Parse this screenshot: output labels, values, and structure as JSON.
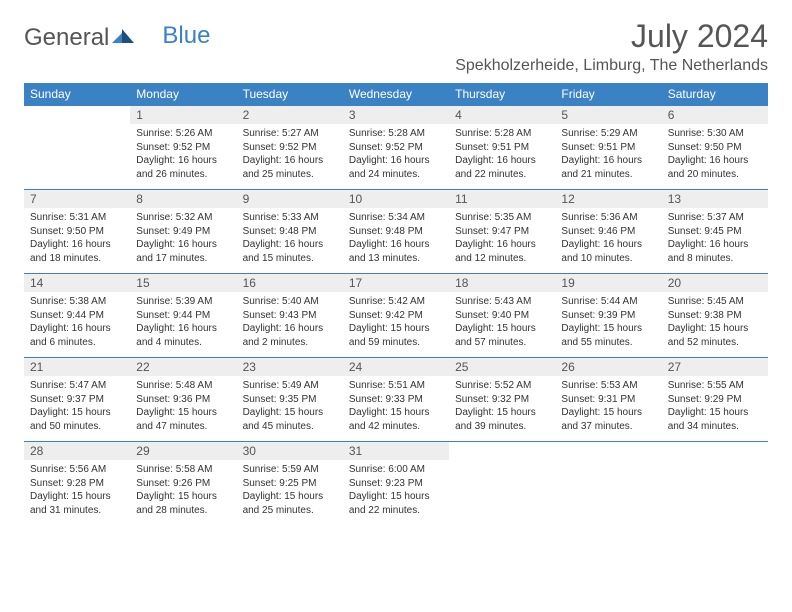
{
  "logo": {
    "text1": "General",
    "text2": "Blue"
  },
  "title": "July 2024",
  "location": "Spekholzerheide, Limburg, The Netherlands",
  "colors": {
    "header_bg": "#3b82c4",
    "daynum_bg": "#eeeeee",
    "text": "#333333"
  },
  "days_of_week": [
    "Sunday",
    "Monday",
    "Tuesday",
    "Wednesday",
    "Thursday",
    "Friday",
    "Saturday"
  ],
  "weeks": [
    [
      {
        "n": "",
        "sr": "",
        "ss": "",
        "dl": ""
      },
      {
        "n": "1",
        "sr": "Sunrise: 5:26 AM",
        "ss": "Sunset: 9:52 PM",
        "dl": "Daylight: 16 hours and 26 minutes."
      },
      {
        "n": "2",
        "sr": "Sunrise: 5:27 AM",
        "ss": "Sunset: 9:52 PM",
        "dl": "Daylight: 16 hours and 25 minutes."
      },
      {
        "n": "3",
        "sr": "Sunrise: 5:28 AM",
        "ss": "Sunset: 9:52 PM",
        "dl": "Daylight: 16 hours and 24 minutes."
      },
      {
        "n": "4",
        "sr": "Sunrise: 5:28 AM",
        "ss": "Sunset: 9:51 PM",
        "dl": "Daylight: 16 hours and 22 minutes."
      },
      {
        "n": "5",
        "sr": "Sunrise: 5:29 AM",
        "ss": "Sunset: 9:51 PM",
        "dl": "Daylight: 16 hours and 21 minutes."
      },
      {
        "n": "6",
        "sr": "Sunrise: 5:30 AM",
        "ss": "Sunset: 9:50 PM",
        "dl": "Daylight: 16 hours and 20 minutes."
      }
    ],
    [
      {
        "n": "7",
        "sr": "Sunrise: 5:31 AM",
        "ss": "Sunset: 9:50 PM",
        "dl": "Daylight: 16 hours and 18 minutes."
      },
      {
        "n": "8",
        "sr": "Sunrise: 5:32 AM",
        "ss": "Sunset: 9:49 PM",
        "dl": "Daylight: 16 hours and 17 minutes."
      },
      {
        "n": "9",
        "sr": "Sunrise: 5:33 AM",
        "ss": "Sunset: 9:48 PM",
        "dl": "Daylight: 16 hours and 15 minutes."
      },
      {
        "n": "10",
        "sr": "Sunrise: 5:34 AM",
        "ss": "Sunset: 9:48 PM",
        "dl": "Daylight: 16 hours and 13 minutes."
      },
      {
        "n": "11",
        "sr": "Sunrise: 5:35 AM",
        "ss": "Sunset: 9:47 PM",
        "dl": "Daylight: 16 hours and 12 minutes."
      },
      {
        "n": "12",
        "sr": "Sunrise: 5:36 AM",
        "ss": "Sunset: 9:46 PM",
        "dl": "Daylight: 16 hours and 10 minutes."
      },
      {
        "n": "13",
        "sr": "Sunrise: 5:37 AM",
        "ss": "Sunset: 9:45 PM",
        "dl": "Daylight: 16 hours and 8 minutes."
      }
    ],
    [
      {
        "n": "14",
        "sr": "Sunrise: 5:38 AM",
        "ss": "Sunset: 9:44 PM",
        "dl": "Daylight: 16 hours and 6 minutes."
      },
      {
        "n": "15",
        "sr": "Sunrise: 5:39 AM",
        "ss": "Sunset: 9:44 PM",
        "dl": "Daylight: 16 hours and 4 minutes."
      },
      {
        "n": "16",
        "sr": "Sunrise: 5:40 AM",
        "ss": "Sunset: 9:43 PM",
        "dl": "Daylight: 16 hours and 2 minutes."
      },
      {
        "n": "17",
        "sr": "Sunrise: 5:42 AM",
        "ss": "Sunset: 9:42 PM",
        "dl": "Daylight: 15 hours and 59 minutes."
      },
      {
        "n": "18",
        "sr": "Sunrise: 5:43 AM",
        "ss": "Sunset: 9:40 PM",
        "dl": "Daylight: 15 hours and 57 minutes."
      },
      {
        "n": "19",
        "sr": "Sunrise: 5:44 AM",
        "ss": "Sunset: 9:39 PM",
        "dl": "Daylight: 15 hours and 55 minutes."
      },
      {
        "n": "20",
        "sr": "Sunrise: 5:45 AM",
        "ss": "Sunset: 9:38 PM",
        "dl": "Daylight: 15 hours and 52 minutes."
      }
    ],
    [
      {
        "n": "21",
        "sr": "Sunrise: 5:47 AM",
        "ss": "Sunset: 9:37 PM",
        "dl": "Daylight: 15 hours and 50 minutes."
      },
      {
        "n": "22",
        "sr": "Sunrise: 5:48 AM",
        "ss": "Sunset: 9:36 PM",
        "dl": "Daylight: 15 hours and 47 minutes."
      },
      {
        "n": "23",
        "sr": "Sunrise: 5:49 AM",
        "ss": "Sunset: 9:35 PM",
        "dl": "Daylight: 15 hours and 45 minutes."
      },
      {
        "n": "24",
        "sr": "Sunrise: 5:51 AM",
        "ss": "Sunset: 9:33 PM",
        "dl": "Daylight: 15 hours and 42 minutes."
      },
      {
        "n": "25",
        "sr": "Sunrise: 5:52 AM",
        "ss": "Sunset: 9:32 PM",
        "dl": "Daylight: 15 hours and 39 minutes."
      },
      {
        "n": "26",
        "sr": "Sunrise: 5:53 AM",
        "ss": "Sunset: 9:31 PM",
        "dl": "Daylight: 15 hours and 37 minutes."
      },
      {
        "n": "27",
        "sr": "Sunrise: 5:55 AM",
        "ss": "Sunset: 9:29 PM",
        "dl": "Daylight: 15 hours and 34 minutes."
      }
    ],
    [
      {
        "n": "28",
        "sr": "Sunrise: 5:56 AM",
        "ss": "Sunset: 9:28 PM",
        "dl": "Daylight: 15 hours and 31 minutes."
      },
      {
        "n": "29",
        "sr": "Sunrise: 5:58 AM",
        "ss": "Sunset: 9:26 PM",
        "dl": "Daylight: 15 hours and 28 minutes."
      },
      {
        "n": "30",
        "sr": "Sunrise: 5:59 AM",
        "ss": "Sunset: 9:25 PM",
        "dl": "Daylight: 15 hours and 25 minutes."
      },
      {
        "n": "31",
        "sr": "Sunrise: 6:00 AM",
        "ss": "Sunset: 9:23 PM",
        "dl": "Daylight: 15 hours and 22 minutes."
      },
      {
        "n": "",
        "sr": "",
        "ss": "",
        "dl": ""
      },
      {
        "n": "",
        "sr": "",
        "ss": "",
        "dl": ""
      },
      {
        "n": "",
        "sr": "",
        "ss": "",
        "dl": ""
      }
    ]
  ]
}
